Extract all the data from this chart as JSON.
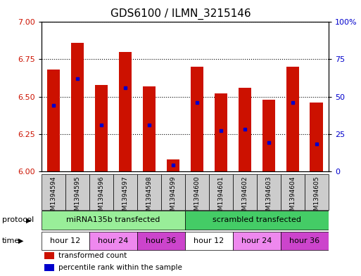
{
  "title": "GDS6100 / ILMN_3215146",
  "samples": [
    "GSM1394594",
    "GSM1394595",
    "GSM1394596",
    "GSM1394597",
    "GSM1394598",
    "GSM1394599",
    "GSM1394600",
    "GSM1394601",
    "GSM1394602",
    "GSM1394603",
    "GSM1394604",
    "GSM1394605"
  ],
  "bar_tops": [
    6.68,
    6.86,
    6.58,
    6.8,
    6.57,
    6.08,
    6.7,
    6.52,
    6.56,
    6.48,
    6.7,
    6.46
  ],
  "blue_dots": [
    6.44,
    6.62,
    6.31,
    6.56,
    6.31,
    6.04,
    6.46,
    6.27,
    6.28,
    6.19,
    6.46,
    6.18
  ],
  "bar_bottom": 6.0,
  "ylim": [
    6.0,
    7.0
  ],
  "yticks_left": [
    6.0,
    6.25,
    6.5,
    6.75,
    7.0
  ],
  "yticks_right": [
    0,
    25,
    50,
    75,
    100
  ],
  "bar_color": "#CC1100",
  "dot_color": "#0000CC",
  "plot_bg_color": "#FFFFFF",
  "protocol_groups": [
    {
      "label": "miRNA135b transfected",
      "start": 0,
      "end": 5,
      "color": "#99EE99"
    },
    {
      "label": "scrambled transfected",
      "start": 6,
      "end": 11,
      "color": "#44CC66"
    }
  ],
  "time_groups": [
    {
      "label": "hour 12",
      "start": 0,
      "end": 1,
      "color": "#FFFFFF"
    },
    {
      "label": "hour 24",
      "start": 2,
      "end": 3,
      "color": "#EE88EE"
    },
    {
      "label": "hour 36",
      "start": 4,
      "end": 5,
      "color": "#CC44CC"
    },
    {
      "label": "hour 12",
      "start": 6,
      "end": 7,
      "color": "#FFFFFF"
    },
    {
      "label": "hour 24",
      "start": 8,
      "end": 9,
      "color": "#EE88EE"
    },
    {
      "label": "hour 36",
      "start": 10,
      "end": 11,
      "color": "#CC44CC"
    }
  ],
  "protocol_label": "protocol",
  "time_label": "time",
  "legend_items": [
    {
      "label": "transformed count",
      "color": "#CC1100"
    },
    {
      "label": "percentile rank within the sample",
      "color": "#0000CC"
    }
  ],
  "sample_bg_color": "#CCCCCC"
}
